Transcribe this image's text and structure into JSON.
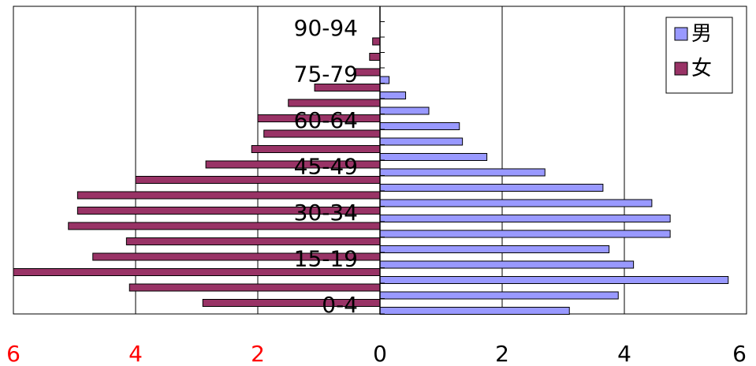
{
  "chart_data": {
    "type": "bar",
    "orientation": "horizontal",
    "layout": "population-pyramid",
    "categories": [
      "0-4",
      "5-9",
      "10-14",
      "15-19",
      "20-24",
      "25-29",
      "30-34",
      "35-39",
      "40-44",
      "45-49",
      "50-54",
      "55-59",
      "60-64",
      "65-69",
      "70-74",
      "75-79",
      "80-84",
      "85-89",
      "90-94",
      "95-99"
    ],
    "category_labels_shown": [
      "0-4",
      "15-19",
      "30-34",
      "45-49",
      "60-64",
      "75-79",
      "90-94"
    ],
    "series": [
      {
        "name": "男",
        "side": "right",
        "color": "#9999ff",
        "values": [
          3.1,
          3.9,
          5.7,
          4.15,
          3.75,
          4.75,
          4.75,
          4.45,
          3.65,
          2.7,
          1.75,
          1.35,
          1.3,
          0.8,
          0.42,
          0.15,
          0,
          0,
          0,
          0
        ]
      },
      {
        "name": "女",
        "side": "left",
        "color": "#993366",
        "values": [
          2.9,
          4.1,
          6.0,
          4.7,
          4.15,
          5.1,
          4.95,
          4.95,
          4.0,
          2.85,
          2.1,
          1.9,
          2.0,
          1.5,
          1.07,
          0.4,
          0.17,
          0.12,
          0,
          0
        ]
      }
    ],
    "x_ticks_left": [
      "6",
      "4",
      "2"
    ],
    "x_ticks_right": [
      "0",
      "2",
      "4",
      "6"
    ],
    "xlim": [
      -6,
      6
    ],
    "grid": "vertical",
    "legend": "top-right",
    "colors": {
      "left_ticks": "#ff0000",
      "right_ticks": "#000000"
    }
  }
}
